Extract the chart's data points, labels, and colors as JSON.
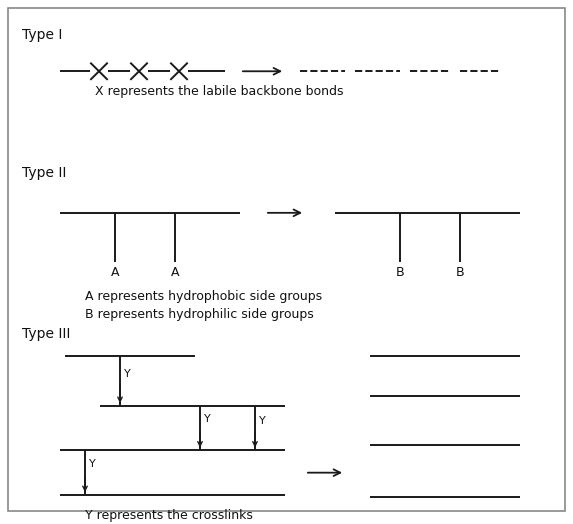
{
  "bg_color": "#ffffff",
  "border_color": "#888888",
  "line_color": "#1a1a1a",
  "text_color": "#111111",
  "fig_width": 5.73,
  "fig_height": 5.24,
  "dpi": 100,
  "type1_label": "Type I",
  "type2_label": "Type II",
  "type3_label": "Type III",
  "type1_caption": "X represents the labile backbone bonds",
  "type2_caption_a": "A represents hydrophobic side groups",
  "type2_caption_b": "B represents hydrophilic side groups",
  "type3_caption": "Y represents the crosslinks"
}
